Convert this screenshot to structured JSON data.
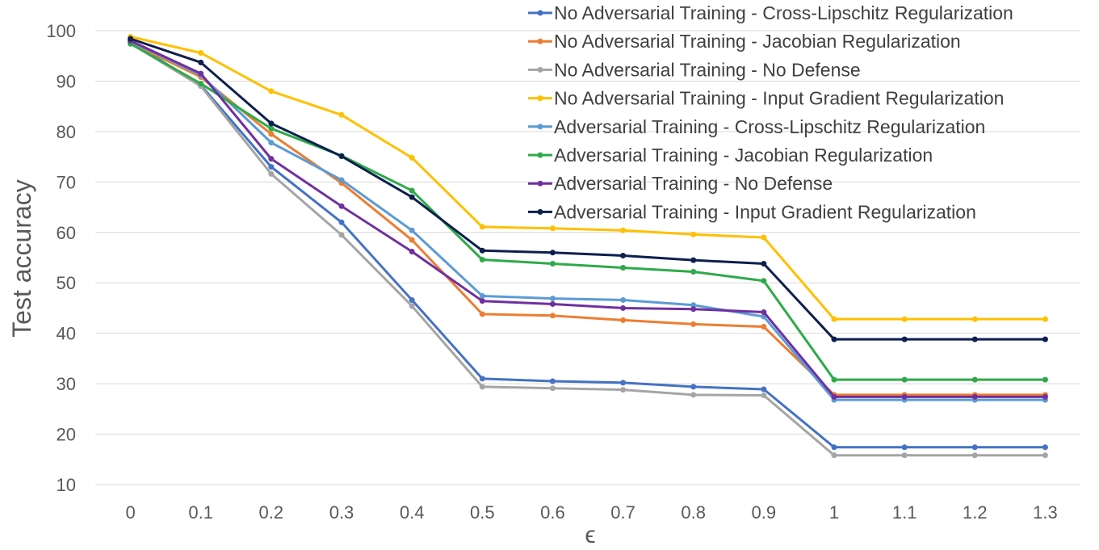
{
  "chart_data": {
    "type": "line",
    "title": "",
    "xlabel": "ϵ",
    "ylabel": "Test accuracy",
    "ylim": [
      10,
      100
    ],
    "yticks": [
      10,
      20,
      30,
      40,
      50,
      60,
      70,
      80,
      90,
      100
    ],
    "grid": true,
    "legend_position": "top-right",
    "categories": [
      "0",
      "0.1",
      "0.2",
      "0.3",
      "0.4",
      "0.5",
      "0.6",
      "0.7",
      "0.8",
      "0.9",
      "1",
      "1.1",
      "1.2",
      "1.3"
    ],
    "series": [
      {
        "name": "No Adversarial Training - Cross-Lipschitz Regularization",
        "color": "#4472C4",
        "values": [
          97.8,
          89.2,
          73.0,
          62.0,
          46.6,
          31.0,
          30.5,
          30.2,
          29.4,
          28.9,
          17.4,
          17.4,
          17.4,
          17.4
        ]
      },
      {
        "name": "No Adversarial Training - Jacobian Regularization",
        "color": "#ED7D31",
        "values": [
          97.6,
          90.8,
          79.5,
          69.8,
          58.5,
          43.8,
          43.5,
          42.6,
          41.8,
          41.3,
          27.8,
          27.8,
          27.8,
          27.8
        ]
      },
      {
        "name": "No Adversarial Training - No Defense",
        "color": "#A5A5A5",
        "values": [
          97.5,
          89.0,
          71.6,
          59.5,
          45.4,
          29.4,
          29.1,
          28.8,
          27.8,
          27.7,
          15.8,
          15.8,
          15.8,
          15.8
        ]
      },
      {
        "name": "No Adversarial Training - Input Gradient Regularization",
        "color": "#FFC000",
        "values": [
          98.8,
          95.6,
          88.0,
          83.3,
          74.8,
          61.1,
          60.8,
          60.4,
          59.6,
          59.0,
          42.8,
          42.8,
          42.8,
          42.8
        ]
      },
      {
        "name": "Adversarial Training - Cross-Lipschitz Regularization",
        "color": "#5B9BD5",
        "values": [
          97.9,
          91.2,
          77.8,
          70.4,
          60.4,
          47.4,
          46.9,
          46.6,
          45.6,
          43.3,
          26.8,
          26.8,
          26.8,
          26.8
        ]
      },
      {
        "name": "Adversarial Training - Jacobian Regularization",
        "color": "#2EAA4A",
        "values": [
          97.4,
          89.5,
          80.6,
          75.2,
          68.3,
          54.6,
          53.8,
          53.0,
          52.2,
          50.4,
          30.8,
          30.8,
          30.8,
          30.8
        ]
      },
      {
        "name": "Adversarial Training - No Defense",
        "color": "#7030A0",
        "values": [
          98.0,
          91.5,
          74.6,
          65.2,
          56.2,
          46.4,
          45.8,
          45.0,
          44.8,
          44.2,
          27.4,
          27.4,
          27.4,
          27.4
        ]
      },
      {
        "name": "Adversarial Training - Input Gradient Regularization",
        "color": "#0D1F4F",
        "values": [
          98.4,
          93.7,
          81.6,
          75.1,
          67.0,
          56.4,
          56.0,
          55.4,
          54.5,
          53.8,
          38.8,
          38.8,
          38.8,
          38.8
        ]
      }
    ]
  }
}
